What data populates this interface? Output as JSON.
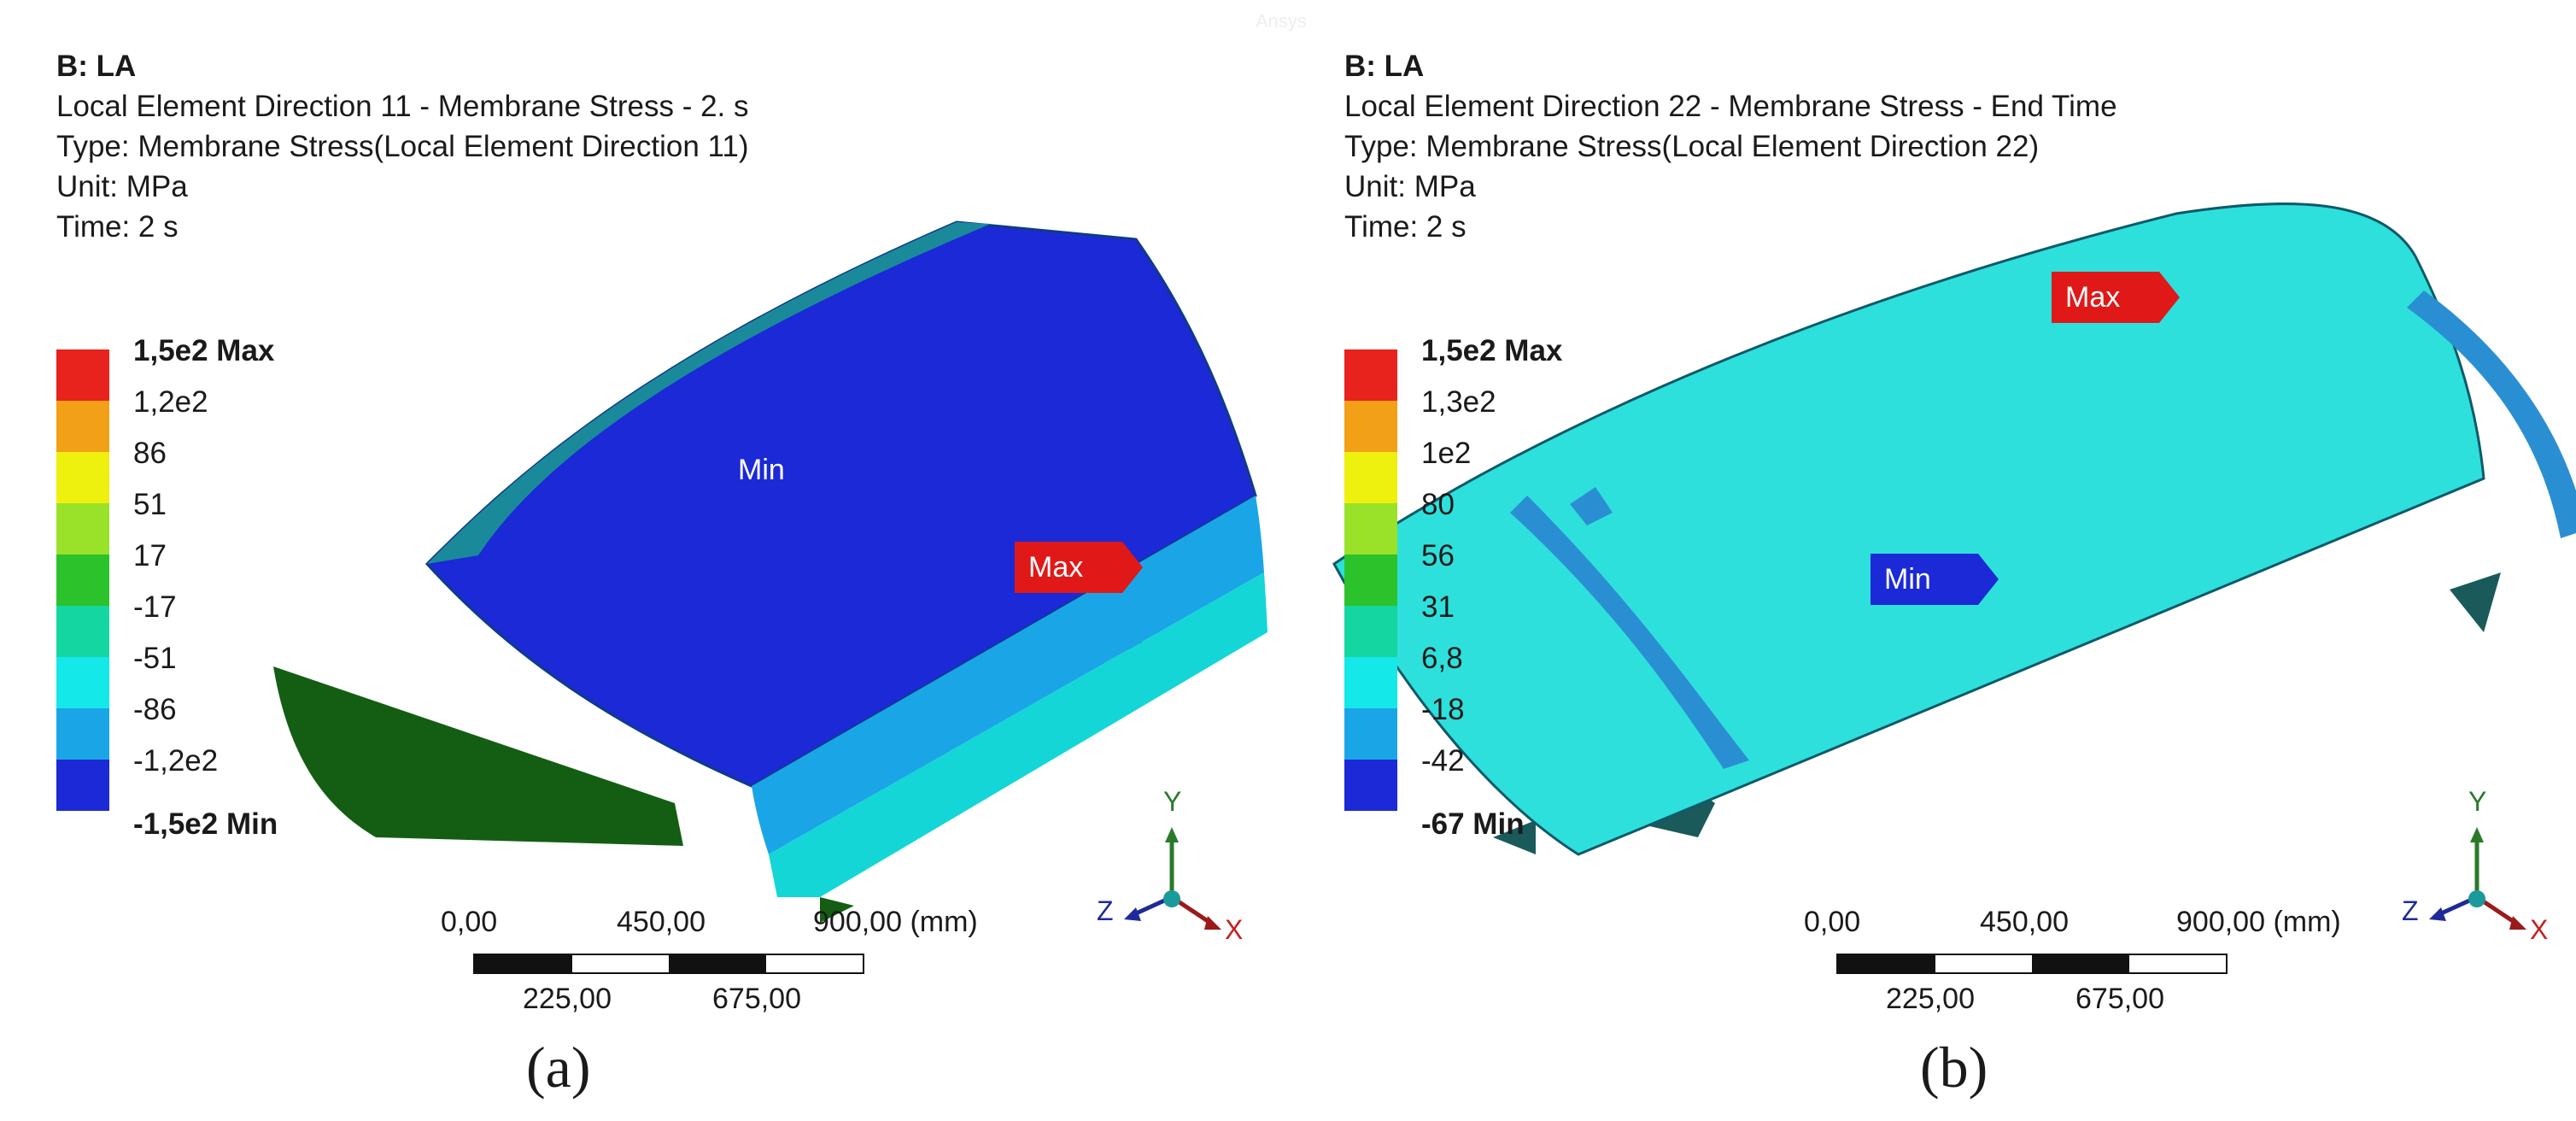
{
  "watermark": "Ansys",
  "panels": [
    {
      "label": "(a)",
      "title": "B: LA",
      "subtitle": "Local Element Direction 11 - Membrane Stress - 2. s",
      "type": "Type: Membrane Stress(Local Element Direction 11)",
      "unit": "Unit: MPa",
      "time": "Time: 2 s",
      "legend": {
        "top": "1,5e2 Max",
        "mid": [
          "1,2e2",
          "86",
          "51",
          "17",
          "-17",
          "-51",
          "-86",
          "-1,2e2"
        ],
        "bottom": "-1,5e2 Min",
        "colors": [
          "#e8221c",
          "#f2a018",
          "#eef00e",
          "#9ae12a",
          "#2cc22c",
          "#14d6a0",
          "#14e8e8",
          "#1aa6e6",
          "#1c29d6"
        ]
      },
      "min_label": "Min",
      "max_label": "Max",
      "scale": {
        "top": [
          "0,00",
          "450,00",
          "900,00 (mm)"
        ],
        "bottom": [
          "225,00",
          "675,00"
        ]
      },
      "axes": {
        "x": "X",
        "y": "Y",
        "z": "Z"
      },
      "model_colors": {
        "shell": "#1c29d6",
        "band": "#1aa6e6",
        "edge": "#14d6d6",
        "end": "#135e13",
        "outline": "#0f3a8a"
      }
    },
    {
      "label": "(b)",
      "title": "B: LA",
      "subtitle": "Local Element Direction 22 - Membrane Stress - End Time",
      "type": "Type: Membrane Stress(Local Element Direction 22)",
      "unit": "Unit: MPa",
      "time": "Time: 2 s",
      "legend": {
        "top": "1,5e2 Max",
        "mid": [
          "1,3e2",
          "1e2",
          "80",
          "56",
          "31",
          "6,8",
          "-18",
          "-42"
        ],
        "bottom": "-67 Min",
        "colors": [
          "#e8221c",
          "#f2a018",
          "#eef00e",
          "#9ae12a",
          "#2cc22c",
          "#14d6a0",
          "#14e8e8",
          "#1aa6e6",
          "#1c29d6"
        ]
      },
      "min_label": "Min",
      "max_label": "Max",
      "scale": {
        "top": [
          "0,00",
          "450,00",
          "900,00 (mm)"
        ],
        "bottom": [
          "225,00",
          "675,00"
        ]
      },
      "axes": {
        "x": "X",
        "y": "Y",
        "z": "Z"
      },
      "model_colors": {
        "shell": "#2ee0dc",
        "band": "#2a8fd2",
        "edge": "#14c8c8",
        "end": "#1a5a5a",
        "outline": "#0f5a6a"
      }
    }
  ]
}
